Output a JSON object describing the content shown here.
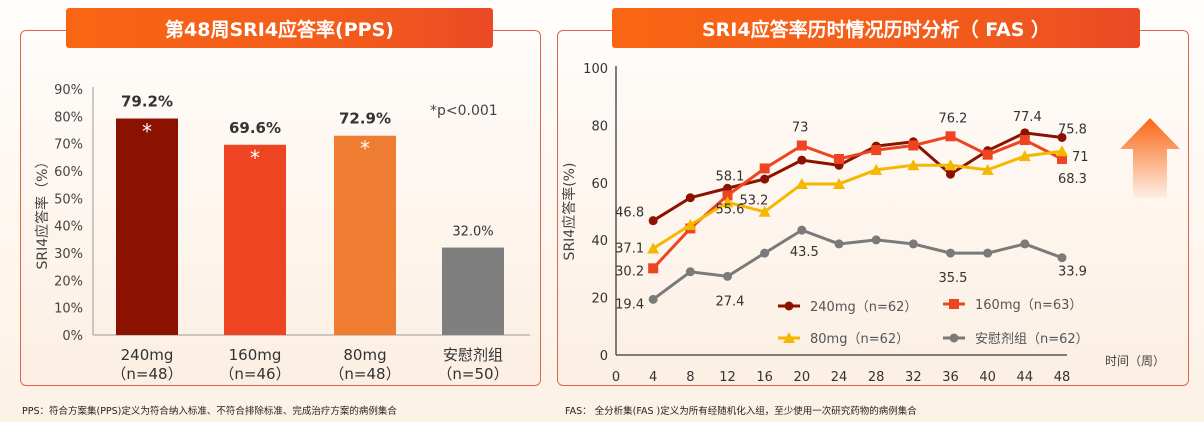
{
  "left": {
    "title": "第48周SRI4应答率(PPS)",
    "footnote": "PPS：符合方案集(PPS)定义为符合纳入标准、不符合排除标准、完成治疗方案的病例集合",
    "pvalue_note": "*p<0.001"
  },
  "right": {
    "title": "SRI4应答率历时情况历时分析（ FAS ）",
    "footnote": "FAS：  全分析集(FAS )定义为所有经随机化入组，至少使用一次研究药物的病例集合",
    "trend_arrow_icon": "up-arrow-icon"
  },
  "chart_data": [
    {
      "type": "bar",
      "ylabel": "SRI4应答率（%）",
      "ylim": [
        0,
        90
      ],
      "yticks": [
        "0%",
        "10%",
        "20%",
        "30%",
        "40%",
        "50%",
        "60%",
        "70%",
        "80%",
        "90%"
      ],
      "grid": false,
      "categories": [
        {
          "line1": "240mg",
          "line2": "（n=48）"
        },
        {
          "line1": "160mg",
          "line2": "（n=46）"
        },
        {
          "line1": "80mg",
          "line2": "（n=48）"
        },
        {
          "line1": "安慰剂组",
          "line2": "（n=50）"
        }
      ],
      "values": [
        79.2,
        69.6,
        72.9,
        32.0
      ],
      "data_labels": [
        "79.2%",
        "69.6%",
        "72.9%",
        "32.0%"
      ],
      "significance_marks": [
        "*",
        "*",
        "*",
        ""
      ],
      "colors": [
        "#8b1200",
        "#ef4422",
        "#ee7d32",
        "#7f7f7f"
      ]
    },
    {
      "type": "line",
      "ylabel": "SRI4应答率(%)",
      "xlabel": "时间（周）",
      "ylim": [
        0,
        100
      ],
      "yticks": [
        0,
        20,
        40,
        60,
        80,
        100
      ],
      "x": [
        0,
        4,
        8,
        12,
        16,
        20,
        24,
        28,
        32,
        36,
        40,
        44,
        48
      ],
      "grid": false,
      "legend_position": "bottom-right",
      "series": [
        {
          "name": "240mg（n=62）",
          "color": "#8b1200",
          "marker": "circle",
          "x": [
            4,
            8,
            12,
            16,
            20,
            24,
            28,
            32,
            36,
            40,
            44,
            48
          ],
          "values": [
            46.8,
            54.8,
            58.1,
            61.3,
            67.9,
            66.1,
            72.8,
            74.3,
            63.0,
            71.2,
            77.4,
            75.8
          ]
        },
        {
          "name": "160mg（n=63）",
          "color": "#ef4422",
          "marker": "square",
          "x": [
            4,
            8,
            12,
            16,
            20,
            24,
            28,
            32,
            36,
            40,
            44,
            48
          ],
          "values": [
            30.2,
            44.1,
            55.6,
            65.0,
            73,
            68.3,
            71.4,
            73.0,
            76.2,
            69.8,
            74.9,
            68.3
          ]
        },
        {
          "name": "80mg（n=62）",
          "color": "#f5b800",
          "marker": "triangle",
          "x": [
            4,
            8,
            12,
            16,
            20,
            24,
            28,
            32,
            36,
            40,
            44,
            48
          ],
          "values": [
            37.1,
            45.3,
            53.2,
            49.9,
            59.6,
            59.6,
            64.5,
            66.1,
            66.1,
            64.5,
            69.3,
            71
          ]
        },
        {
          "name": "安慰剂组（n=62）",
          "color": "#7a7a7a",
          "marker": "circle",
          "x": [
            4,
            8,
            12,
            16,
            20,
            24,
            28,
            32,
            36,
            40,
            44,
            48
          ],
          "values": [
            19.4,
            29.0,
            27.4,
            35.5,
            43.5,
            38.7,
            40.1,
            38.7,
            35.5,
            35.5,
            38.7,
            33.9
          ]
        }
      ],
      "annotations": [
        {
          "x": 4,
          "y": 46.8,
          "text": "46.8"
        },
        {
          "x": 4,
          "y": 37.1,
          "text": "37.1"
        },
        {
          "x": 4,
          "y": 30.2,
          "text": "30.2"
        },
        {
          "x": 4,
          "y": 19.4,
          "text": "19.4"
        },
        {
          "x": 12,
          "y": 58.1,
          "text": "58.1"
        },
        {
          "x": 12,
          "y": 53.2,
          "text": "53.2"
        },
        {
          "x": 12,
          "y": 55.6,
          "text": "55.6"
        },
        {
          "x": 12,
          "y": 27.4,
          "text": "27.4"
        },
        {
          "x": 20,
          "y": 73,
          "text": "73"
        },
        {
          "x": 20,
          "y": 43.5,
          "text": "43.5"
        },
        {
          "x": 36,
          "y": 76.2,
          "text": "76.2"
        },
        {
          "x": 36,
          "y": 35.5,
          "text": "35.5"
        },
        {
          "x": 44,
          "y": 77.4,
          "text": "77.4"
        },
        {
          "x": 48,
          "y": 75.8,
          "text": "75.8"
        },
        {
          "x": 48,
          "y": 71,
          "text": "71"
        },
        {
          "x": 48,
          "y": 68.3,
          "text": "68.3"
        },
        {
          "x": 48,
          "y": 33.9,
          "text": "33.9"
        }
      ]
    }
  ]
}
